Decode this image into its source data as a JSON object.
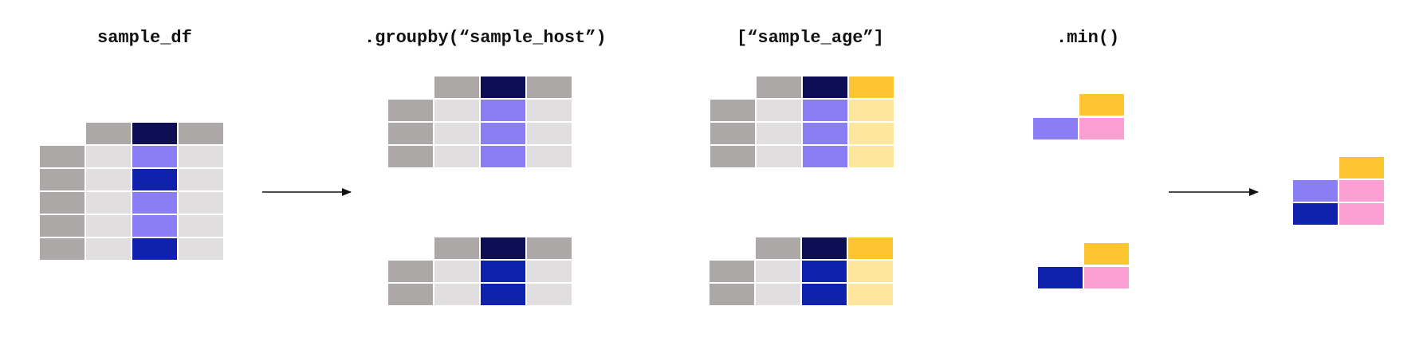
{
  "labels": {
    "step1": "sample_df",
    "step2": ".groupby(“sample_host”)",
    "step3": "[“sample_age”]",
    "step4": ".min()"
  },
  "colors": {
    "header_gray": "#aca8a7",
    "cell_light": "#e0dedf",
    "header_navy": "#0e0e55",
    "host_a": "#8a7ef5",
    "host_b": "#0e22ad",
    "age_header": "#fec532",
    "age_cell": "#ffe69d",
    "min_value": "#fe9fd3",
    "arrow": "#111111"
  },
  "diagram": {
    "source_table": {
      "host_groups": [
        "a",
        "b",
        "a",
        "a",
        "b"
      ]
    },
    "grouped_tables": [
      {
        "group": "a",
        "rows": 3
      },
      {
        "group": "b",
        "rows": 2
      }
    ],
    "selected_tables": [
      {
        "group": "a",
        "rows": 3
      },
      {
        "group": "b",
        "rows": 2
      }
    ],
    "min_results": [
      {
        "group": "a"
      },
      {
        "group": "b"
      }
    ],
    "final_result": {
      "groups": [
        "a",
        "b"
      ]
    }
  }
}
